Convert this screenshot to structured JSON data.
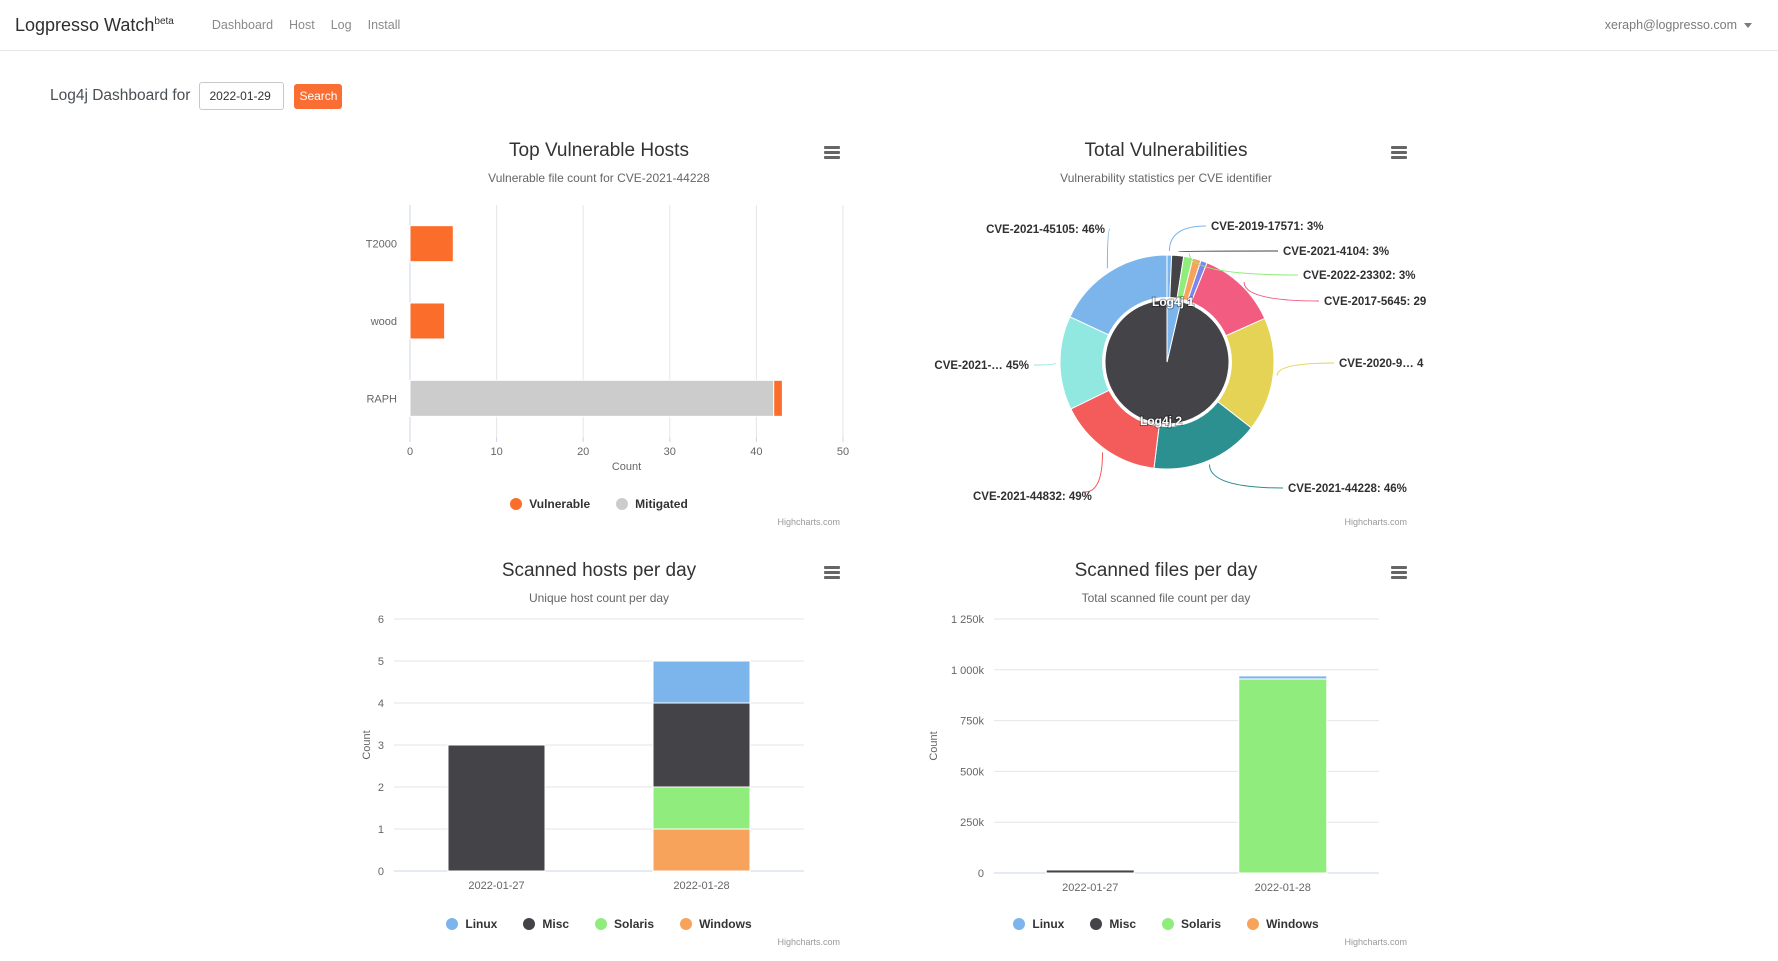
{
  "header": {
    "brand": "Logpresso Watch",
    "brand_badge": "beta",
    "nav": [
      {
        "label": "Dashboard"
      },
      {
        "label": "Host"
      },
      {
        "label": "Log"
      },
      {
        "label": "Install"
      }
    ],
    "user_email": "xeraph@logpresso.com"
  },
  "toolbar": {
    "label": "Log4j Dashboard for",
    "date_value": "2022-01-29",
    "search_label": "Search"
  },
  "credits_label": "Highcharts.com",
  "colors": {
    "vulnerable_orange": "#fb6d2a",
    "mitigated_gray": "#cccccc",
    "button_orange": "#fa6e33",
    "linux_blue": "#7cb5ec",
    "misc_dark": "#434348",
    "solaris_green": "#90ed7d",
    "windows_orange": "#f7a35c",
    "grid_line": "#e6e6e6",
    "axis_line": "#ccd6eb"
  },
  "chart_data": [
    {
      "id": "top-vulnerable-hosts",
      "type": "bar",
      "title": "Top Vulnerable Hosts",
      "subtitle": "Vulnerable file count for CVE-2021-44228",
      "categories": [
        "T2000",
        "wood",
        "RAPH"
      ],
      "series": [
        {
          "name": "Vulnerable",
          "color": "#fb6d2a",
          "values": [
            5,
            4,
            1
          ]
        },
        {
          "name": "Mitigated",
          "color": "#cccccc",
          "values": [
            0,
            0,
            42
          ]
        }
      ],
      "xlabel": "Count",
      "xlim": [
        0,
        50
      ],
      "xticks": [
        0,
        10,
        20,
        30,
        40,
        50
      ],
      "legend_position": "bottom-center"
    },
    {
      "id": "total-vulnerabilities",
      "type": "pie",
      "title": "Total Vulnerabilities",
      "subtitle": "Vulnerability statistics per CVE identifier",
      "inner_slices": [
        {
          "label": "Log4j 1",
          "color": "#7cb5ec",
          "start_deg": 0,
          "end_deg": 13
        },
        {
          "label": "Log4j 2",
          "color": "#434348",
          "start_deg": 13,
          "end_deg": 360
        }
      ],
      "outer_slices": [
        {
          "label": "CVE-2019-17571: 3%",
          "color": "#7cb5ec",
          "start_deg": 0,
          "end_deg": 2.5
        },
        {
          "label": "CVE-2021-4104: 3%",
          "color": "#434348",
          "start_deg": 2.5,
          "end_deg": 9
        },
        {
          "label": "CVE-2022-23302: 3%",
          "color": "#90ed7d",
          "start_deg": 9,
          "end_deg": 14
        },
        {
          "label": "",
          "color": "#f7a35c",
          "start_deg": 14,
          "end_deg": 18.5
        },
        {
          "label": "",
          "color": "#8085e9",
          "start_deg": 18.5,
          "end_deg": 22
        },
        {
          "label": "CVE-2017-5645: 29",
          "color": "#f15c80",
          "start_deg": 22,
          "end_deg": 66
        },
        {
          "label": "CVE-2020-9… 4",
          "color": "#e4d354",
          "start_deg": 66,
          "end_deg": 128
        },
        {
          "label": "CVE-2021-44228: 46%",
          "color": "#2b908f",
          "start_deg": 128,
          "end_deg": 187
        },
        {
          "label": "CVE-2021-44832: 49%",
          "color": "#f45b5b",
          "start_deg": 187,
          "end_deg": 244
        },
        {
          "label": "CVE-2021-… 45%",
          "color": "#91e8e1",
          "start_deg": 244,
          "end_deg": 295
        },
        {
          "label": "CVE-2021-45105: 46%",
          "color": "#7cb5ec",
          "start_deg": 295,
          "end_deg": 360
        }
      ]
    },
    {
      "id": "scanned-hosts-per-day",
      "type": "column-stacked",
      "title": "Scanned hosts per day",
      "subtitle": "Unique host count per day",
      "categories": [
        "2022-01-27",
        "2022-01-28"
      ],
      "series": [
        {
          "name": "Linux",
          "color": "#7cb5ec",
          "values": [
            0,
            1
          ]
        },
        {
          "name": "Misc",
          "color": "#434348",
          "values": [
            3,
            2
          ]
        },
        {
          "name": "Solaris",
          "color": "#90ed7d",
          "values": [
            0,
            1
          ]
        },
        {
          "name": "Windows",
          "color": "#f7a35c",
          "values": [
            0,
            1
          ]
        }
      ],
      "stack_bottom_to_top": [
        "Windows",
        "Solaris",
        "Misc",
        "Linux"
      ],
      "ylabel": "Count",
      "ymax": 6,
      "yticks": [
        {
          "v": 0,
          "label": "0"
        },
        {
          "v": 1,
          "label": "1"
        },
        {
          "v": 2,
          "label": "2"
        },
        {
          "v": 3,
          "label": "3"
        },
        {
          "v": 4,
          "label": "4"
        },
        {
          "v": 5,
          "label": "5"
        },
        {
          "v": 6,
          "label": "6"
        }
      ],
      "legend_position": "bottom-center"
    },
    {
      "id": "scanned-files-per-day",
      "type": "column-stacked",
      "title": "Scanned files per day",
      "subtitle": "Total scanned file count per day",
      "categories": [
        "2022-01-27",
        "2022-01-28"
      ],
      "series": [
        {
          "name": "Linux",
          "color": "#7cb5ec",
          "values": [
            0,
            15000
          ]
        },
        {
          "name": "Misc",
          "color": "#434348",
          "values": [
            15000,
            0
          ]
        },
        {
          "name": "Solaris",
          "color": "#90ed7d",
          "values": [
            0,
            955000
          ]
        },
        {
          "name": "Windows",
          "color": "#f7a35c",
          "values": [
            0,
            0
          ]
        }
      ],
      "stack_bottom_to_top": [
        "Windows",
        "Solaris",
        "Misc",
        "Linux"
      ],
      "ylabel": "Count",
      "ymax": 1250000,
      "yticks": [
        {
          "v": 0,
          "label": "0"
        },
        {
          "v": 250000,
          "label": "250k"
        },
        {
          "v": 500000,
          "label": "500k"
        },
        {
          "v": 750000,
          "label": "750k"
        },
        {
          "v": 1000000,
          "label": "1 000k"
        },
        {
          "v": 1250000,
          "label": "1 250k"
        }
      ],
      "legend_position": "bottom-center"
    }
  ]
}
